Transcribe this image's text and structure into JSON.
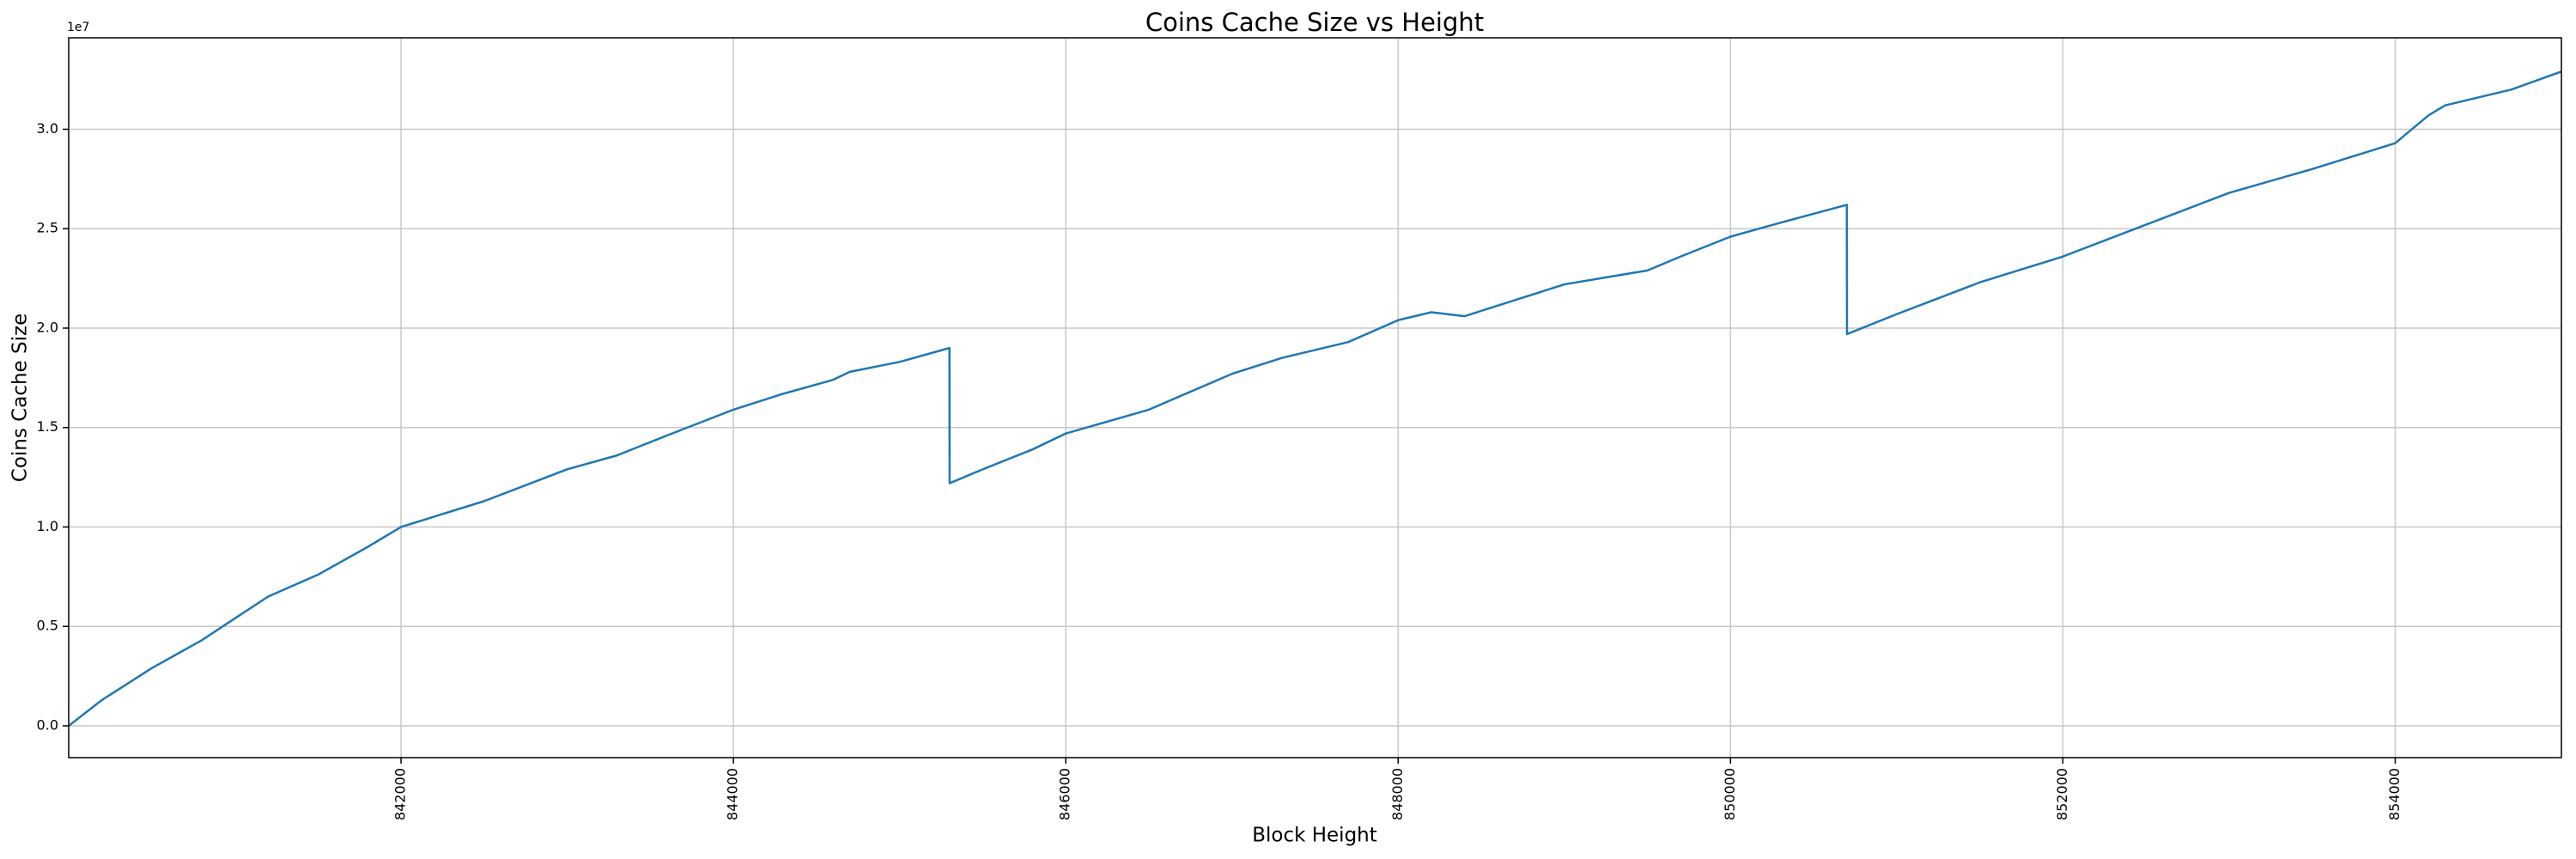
{
  "chart_data": {
    "type": "line",
    "title": "Coins Cache Size vs Height",
    "x_label": "Block Height",
    "y_label": "Coins Cache Size",
    "y_offset_label": "1e7",
    "color": "#1f77b4",
    "grid": true,
    "x": [
      840000,
      840200,
      840500,
      840800,
      841000,
      841200,
      841500,
      841800,
      842000,
      842500,
      843000,
      843300,
      843600,
      844000,
      844300,
      844600,
      844700,
      845000,
      845300,
      845301,
      845500,
      845800,
      846000,
      846500,
      847000,
      847300,
      847700,
      848000,
      848200,
      848400,
      848700,
      849000,
      849500,
      849700,
      850000,
      850300,
      850700,
      850701,
      851000,
      851500,
      852000,
      852500,
      853000,
      853500,
      854000,
      854200,
      854300,
      854700,
      855000
    ],
    "values": [
      0,
      1300000,
      2900000,
      4300000,
      5400000,
      6500000,
      7600000,
      9000000,
      10000000,
      11300000,
      12900000,
      13600000,
      14600000,
      15900000,
      16700000,
      17400000,
      17800000,
      18300000,
      19000000,
      12200000,
      12900000,
      13900000,
      14700000,
      15900000,
      17700000,
      18500000,
      19300000,
      20400000,
      20800000,
      20600000,
      21400000,
      22200000,
      22900000,
      23600000,
      24600000,
      25300000,
      26200000,
      19700000,
      20700000,
      22300000,
      23600000,
      25200000,
      26800000,
      28000000,
      29300000,
      30700000,
      31200000,
      32000000,
      32900000
    ],
    "xlim": [
      840000,
      855000
    ],
    "ylim": [
      -1600000,
      34600000
    ],
    "xticks": [
      842000,
      844000,
      846000,
      848000,
      850000,
      852000,
      854000
    ],
    "yticks": [
      {
        "value": 0,
        "label": "0.0"
      },
      {
        "value": 5000000,
        "label": "0.5"
      },
      {
        "value": 10000000,
        "label": "1.0"
      },
      {
        "value": 15000000,
        "label": "1.5"
      },
      {
        "value": 20000000,
        "label": "2.0"
      },
      {
        "value": 25000000,
        "label": "2.5"
      },
      {
        "value": 30000000,
        "label": "3.0"
      }
    ]
  }
}
